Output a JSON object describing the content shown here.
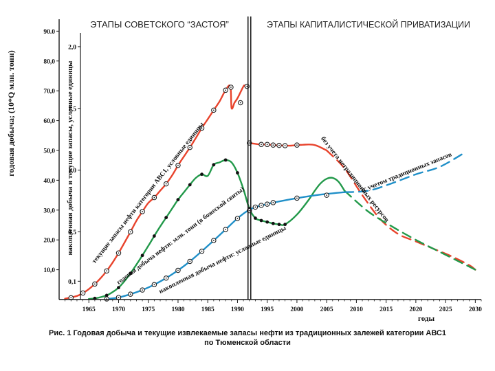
{
  "chart_data": {
    "type": "line",
    "title_left": "ЭТАПЫ СОВЕТСКОГО “ЗАСТОЯ”",
    "title_right": "ЭТАПЫ КАПИТАЛИСТИЧЕСКОЙ ПРИВАТИЗАЦИИ",
    "ylabel_left": "годовая добыча; (10*Q млн. тонн)",
    "ylabel_right": "накопленная добыча и текущие запасы, условные единицы",
    "xlabel": "годы",
    "caption_line1": "Рис. 1 Годовая добыча и текущие извлекаемые запасы нефти из традиционных залежей категории АВС1",
    "caption_line2": "по Тюменской области",
    "xlim": [
      1960,
      2031
    ],
    "x_ticks": [
      1965,
      1970,
      1975,
      1980,
      1985,
      1990,
      1995,
      2000,
      2005,
      2010,
      2015,
      2020,
      2025,
      2030
    ],
    "y_left_ticks": [
      "90.0",
      "80,0",
      "70,0",
      "60,0",
      "50,0",
      "40,0",
      "30,0",
      "20,0",
      "10,0"
    ],
    "y_left_values": [
      90,
      80,
      70,
      60,
      50,
      40,
      30,
      20,
      10
    ],
    "y_left_lim": [
      0,
      94
    ],
    "y_right_ticks": [
      "2,0",
      "1,5",
      "1,0",
      "0,5",
      "0,1"
    ],
    "y_right_values": [
      2.0,
      1.5,
      1.0,
      0.5,
      0.1
    ],
    "separator_x": 1992,
    "colors": {
      "reserves": "#e8432c",
      "production": "#22994a",
      "cumulative": "#1f8fc8",
      "axis": "#1a1a1a"
    },
    "series": [
      {
        "key": "reserves",
        "name": "текущие запасы нефти категории АВС1, условные единицы",
        "style": "solid",
        "x": [
          1961,
          1963,
          1964,
          1965,
          1966,
          1967,
          1968,
          1969,
          1970,
          1971,
          1972,
          1973,
          1974,
          1975,
          1976,
          1977,
          1978,
          1979,
          1980,
          1981,
          1982,
          1983,
          1984,
          1985,
          1986,
          1987,
          1988,
          1988.8,
          1989,
          1989.5,
          1990,
          1990.5,
          1991,
          1991.2,
          1991.6
        ],
        "y": [
          0.3,
          1.2,
          2.2,
          3.5,
          5.2,
          7.2,
          9.6,
          12.4,
          15.6,
          19.1,
          22.7,
          26.4,
          29.5,
          32.4,
          34.2,
          36.5,
          38.8,
          41.6,
          45,
          48,
          51,
          54.2,
          57.5,
          60.5,
          63.5,
          66.5,
          70.2,
          71.5,
          64.2,
          66,
          67.5,
          69.5,
          71.5,
          71.8,
          71.5
        ]
      },
      {
        "key": "reserves_markers",
        "name": "",
        "style": "markers",
        "x": [
          1962,
          1964,
          1966,
          1968,
          1970,
          1972,
          1974,
          1976,
          1978,
          1980,
          1982,
          1984,
          1986,
          1988,
          1988.9,
          1990.5,
          1991.6
        ],
        "y": [
          0.6,
          2.2,
          5.2,
          9.6,
          15.6,
          22.7,
          29.5,
          34.2,
          38.8,
          45,
          51,
          57.5,
          63.5,
          70.2,
          71.2,
          66,
          71.5
        ]
      },
      {
        "key": "reserves_post",
        "name": "",
        "style": "solid",
        "x": [
          1992,
          1993,
          1994,
          1995,
          1996,
          1997,
          1998,
          1999,
          2000,
          2001,
          2002,
          2003,
          2004,
          2005
        ],
        "y": [
          52.5,
          52.2,
          52,
          52,
          51.8,
          51.7,
          51.6,
          51.6,
          51.8,
          51.9,
          52,
          51.8,
          51,
          50
        ]
      },
      {
        "key": "reserves_post_markers",
        "name": "",
        "style": "markers",
        "x": [
          1992,
          1994,
          1995,
          1996,
          1997,
          1998,
          2000
        ],
        "y": [
          52.5,
          52,
          52,
          51.8,
          51.7,
          51.6,
          51.8
        ]
      },
      {
        "key": "reserves_forecast",
        "name": "без учета нетрадиционных ресурсов",
        "style": "dashed",
        "x": [
          2005,
          2008,
          2011,
          2014,
          2017,
          2020,
          2023,
          2026,
          2029,
          2030
        ],
        "y": [
          50,
          44,
          35,
          27,
          22,
          19.5,
          17,
          14.5,
          11.5,
          10
        ]
      },
      {
        "key": "production",
        "name": "годовая добыча нефти: млн. тонн (в божеской свиты)",
        "style": "solid",
        "x": [
          1965,
          1966,
          1967,
          1968,
          1969,
          1970,
          1971,
          1972,
          1973,
          1974,
          1975,
          1976,
          1977,
          1978,
          1979,
          1980,
          1981,
          1982,
          1983,
          1984,
          1985,
          1986,
          1987,
          1988,
          1989,
          1990,
          1991,
          1992,
          1993,
          1994,
          1995,
          1996,
          1997,
          1998,
          2000,
          2002,
          2003,
          2004,
          2005,
          2006,
          2007,
          2008
        ],
        "y": [
          0.2,
          0.4,
          0.8,
          1.4,
          2.5,
          4,
          6.2,
          8.8,
          11.7,
          14.8,
          18,
          21.3,
          24.5,
          27.5,
          30.5,
          33.5,
          36,
          38.5,
          40.8,
          42,
          41.5,
          45.2,
          46,
          46.8,
          46,
          42.5,
          37,
          30.5,
          27.3,
          26.5,
          26,
          25.5,
          25.2,
          25.2,
          28.5,
          33.5,
          36.5,
          39,
          40.5,
          40.8,
          39.5,
          36.5
        ]
      },
      {
        "key": "production_markers",
        "name": "",
        "style": "dots",
        "x": [
          1966,
          1968,
          1970,
          1972,
          1974,
          1976,
          1978,
          1980,
          1982,
          1984,
          1986,
          1988,
          1990,
          1992,
          1993,
          1994,
          1995,
          1996,
          1997,
          1998
        ],
        "y": [
          0.4,
          1.4,
          4,
          8.8,
          14.8,
          21.3,
          27.5,
          33.5,
          38.5,
          42,
          45.2,
          46.8,
          42.5,
          30.5,
          27.3,
          26.5,
          26,
          25.5,
          25.2,
          25.2
        ]
      },
      {
        "key": "production_forecast",
        "name": "",
        "style": "dashed",
        "x": [
          2008,
          2012,
          2016,
          2020,
          2024,
          2028,
          2030
        ],
        "y": [
          36.5,
          29.5,
          24.5,
          20,
          16,
          12,
          10
        ]
      },
      {
        "key": "cumulative",
        "name": "накопленная добыча нефти: условные единицы",
        "style": "solid",
        "x": [
          1968,
          1970,
          1972,
          1974,
          1976,
          1978,
          1980,
          1982,
          1984,
          1986,
          1988,
          1990,
          1991.5,
          1993,
          1995,
          1996,
          2000,
          2004,
          2008
        ],
        "y": [
          0.2,
          0.7,
          1.8,
          3.2,
          5,
          7.2,
          9.8,
          12.8,
          16.2,
          19.8,
          23.5,
          27.2,
          29.5,
          31,
          32,
          32.5,
          34,
          35.2,
          36
        ]
      },
      {
        "key": "cumulative_markers",
        "name": "",
        "style": "markers",
        "x": [
          1968,
          1970,
          1972,
          1974,
          1976,
          1978,
          1980,
          1982,
          1984,
          1986,
          1988,
          1990,
          1992,
          1993,
          1994,
          1995,
          1996,
          2000,
          2005
        ],
        "y": [
          0.2,
          0.7,
          1.8,
          3.2,
          5,
          7.2,
          9.8,
          12.8,
          16.2,
          19.8,
          23.5,
          27.2,
          29.8,
          31,
          31.6,
          32,
          32.5,
          34,
          35
        ]
      },
      {
        "key": "cumulative_forecast",
        "name": "(с учетом традиционных запасов",
        "style": "dashed",
        "x": [
          2008,
          2012,
          2016,
          2020,
          2024,
          2028
        ],
        "y": [
          36,
          36.5,
          39,
          42,
          44.5,
          49
        ]
      }
    ],
    "annotations": [
      {
        "text": "текущие запасы нефти категории АВС1, условные единицы",
        "x": 1966,
        "y": 12,
        "angle": -52,
        "color": "#111"
      },
      {
        "text": "годовая добыча нефти: млн. тонн (в божеской свиты)",
        "x": 1970,
        "y": 5,
        "angle": -37,
        "color": "#111"
      },
      {
        "text": "накопленная добыча нефти: условные единицы",
        "x": 1977,
        "y": 2,
        "angle": -27,
        "color": "#111"
      },
      {
        "text": "без учета нетрадиционных ресурсов",
        "x": 2004,
        "y": 54,
        "angle": 52,
        "color": "#111"
      },
      {
        "text": "(с учетом традиционных запасов",
        "x": 2011,
        "y": 36,
        "angle": -22,
        "color": "#111"
      }
    ]
  }
}
